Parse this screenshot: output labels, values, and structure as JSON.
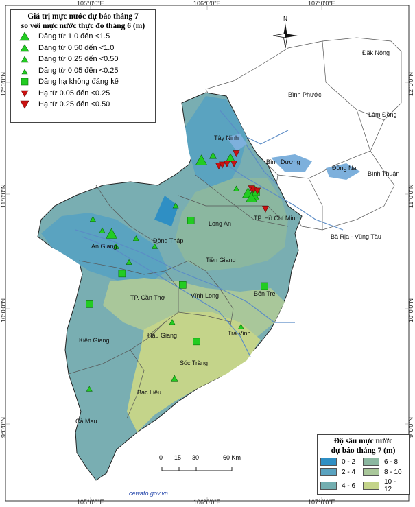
{
  "map_title_line1": "Giá trị mực nước dự báo tháng 7",
  "map_title_line2": "so với mực nước thực đo tháng 6 (m)",
  "symbol_legend": [
    {
      "label": "Dâng từ 1.0 đến <1.5",
      "shape": "triangle-up",
      "size": "large",
      "color": "#22cc22"
    },
    {
      "label": "Dâng từ 0.50 đến <1.0",
      "shape": "triangle-up",
      "size": "medium",
      "color": "#22cc22"
    },
    {
      "label": "Dâng từ 0.25 đến <0.50",
      "shape": "triangle-up",
      "size": "small",
      "color": "#22cc22"
    },
    {
      "label": "Dâng từ 0.05 đến <0.25",
      "shape": "triangle-up",
      "size": "tiny",
      "color": "#22cc22"
    },
    {
      "label": "Dâng hạ không đáng kể",
      "shape": "square",
      "size": "medium",
      "color": "#22cc22"
    },
    {
      "label": "Hạ từ 0.05 đến <0.25",
      "shape": "triangle-down",
      "size": "small",
      "color": "#cc1111"
    },
    {
      "label": "Hạ từ 0.25 đến <0.50",
      "shape": "triangle-down",
      "size": "medium",
      "color": "#cc1111"
    }
  ],
  "depth_legend_title_line1": "Độ sâu mực nước",
  "depth_legend_title_line2": "dự báo tháng 7 (m)",
  "depth_classes": [
    {
      "label": "0 - 2",
      "color": "#2f8fc4"
    },
    {
      "label": "6 - 8",
      "color": "#8bb7a0"
    },
    {
      "label": "2 - 4",
      "color": "#5aa3c0"
    },
    {
      "label": "8 - 10",
      "color": "#a9c79a"
    },
    {
      "label": "4 - 6",
      "color": "#73aeb0"
    },
    {
      "label": "10 - 12",
      "color": "#c4d48a"
    }
  ],
  "longitude_labels": [
    "105°0'0\"E",
    "106°0'0\"E",
    "107°0'0\"E"
  ],
  "latitude_labels": [
    "12°0'0\"N",
    "11°0'0\"N",
    "10°0'0\"N",
    "9°0'0\"N"
  ],
  "north_label": "N",
  "scale_labels": [
    "0",
    "15",
    "30",
    "60 Km"
  ],
  "credit": "cewafo.gov.vn",
  "places": [
    "Đăk Nông",
    "Bình Phước",
    "Lâm Đồng",
    "Tây Ninh",
    "Bình Dương",
    "Đồng Nai",
    "Bình Thuận",
    "TP. Hồ Chí Minh",
    "Long An",
    "Bà Rịa - Vũng Tàu",
    "An Giang",
    "Đồng Tháp",
    "Tiền Giang",
    "TP. Cần Thơ",
    "Vĩnh Long",
    "Bến Tre",
    "Kiên Giang",
    "Hậu Giang",
    "Trà Vinh",
    "Sóc Trăng",
    "Bạc Liêu",
    "Cà Mau"
  ],
  "stations": [
    {
      "type": "large-up",
      "lon": 105.95,
      "lat": 11.31
    },
    {
      "type": "large-up",
      "lon": 106.35,
      "lat": 11.02
    },
    {
      "type": "large-up",
      "lon": 106.4,
      "lat": 11.0
    },
    {
      "type": "large-up",
      "lon": 106.38,
      "lat": 10.98
    },
    {
      "type": "large-up",
      "lon": 105.18,
      "lat": 10.66
    },
    {
      "type": "medium-up",
      "lon": 106.2,
      "lat": 11.33
    },
    {
      "type": "small-up",
      "lon": 106.05,
      "lat": 11.35
    },
    {
      "type": "tiny-up",
      "lon": 106.25,
      "lat": 11.06
    },
    {
      "type": "tiny-up",
      "lon": 106.41,
      "lat": 11.06
    },
    {
      "type": "tiny-up",
      "lon": 105.73,
      "lat": 10.91
    },
    {
      "type": "tiny-up",
      "lon": 105.02,
      "lat": 10.79
    },
    {
      "type": "tiny-up",
      "lon": 105.1,
      "lat": 10.69
    },
    {
      "type": "tiny-up",
      "lon": 105.22,
      "lat": 10.55
    },
    {
      "type": "tiny-up",
      "lon": 105.33,
      "lat": 10.41
    },
    {
      "type": "tiny-up",
      "lon": 105.39,
      "lat": 10.62
    },
    {
      "type": "tiny-up",
      "lon": 105.55,
      "lat": 10.55
    },
    {
      "type": "tiny-up",
      "lon": 105.7,
      "lat": 9.88
    },
    {
      "type": "tiny-up",
      "lon": 106.29,
      "lat": 9.84
    },
    {
      "type": "small-up",
      "lon": 105.72,
      "lat": 9.38
    },
    {
      "type": "tiny-up",
      "lon": 104.99,
      "lat": 9.29
    },
    {
      "type": "square",
      "lon": 105.86,
      "lat": 10.78
    },
    {
      "type": "square",
      "lon": 105.27,
      "lat": 10.31
    },
    {
      "type": "square",
      "lon": 105.79,
      "lat": 10.21
    },
    {
      "type": "square",
      "lon": 104.99,
      "lat": 10.04
    },
    {
      "type": "square",
      "lon": 105.91,
      "lat": 9.71
    },
    {
      "type": "square",
      "lon": 106.49,
      "lat": 10.2
    },
    {
      "type": "square",
      "lon": 106.42,
      "lat": 11.03
    },
    {
      "type": "small-down",
      "lon": 106.25,
      "lat": 11.37
    },
    {
      "type": "small-down",
      "lon": 106.1,
      "lat": 11.26
    },
    {
      "type": "small-down",
      "lon": 106.13,
      "lat": 11.27
    },
    {
      "type": "small-down",
      "lon": 106.17,
      "lat": 11.28
    },
    {
      "type": "small-down",
      "lon": 106.23,
      "lat": 11.28
    },
    {
      "type": "small-down",
      "lon": 106.38,
      "lat": 11.06
    },
    {
      "type": "small-down",
      "lon": 106.4,
      "lat": 11.05
    },
    {
      "type": "small-down",
      "lon": 106.43,
      "lat": 11.04
    },
    {
      "type": "small-down",
      "lon": 106.5,
      "lat": 10.88
    }
  ],
  "colors": {
    "sea": "#ffffff",
    "outline": "#222222",
    "province_border": "#555555",
    "river": "#5b8cc6"
  }
}
